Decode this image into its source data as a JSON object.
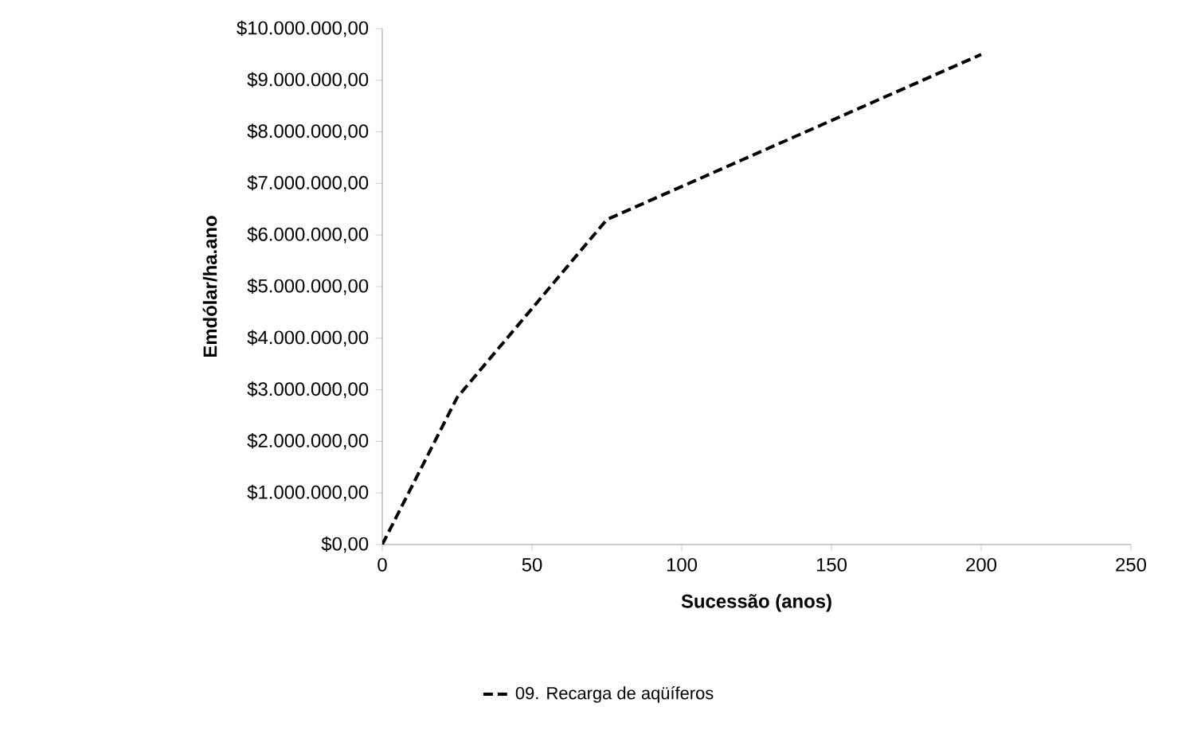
{
  "chart_data": {
    "type": "line",
    "xlabel": "Sucessão (anos)",
    "ylabel": "Emdólar/ha.ano",
    "x": [
      0,
      25,
      75,
      200
    ],
    "series": [
      {
        "name": "09. Recarga de aqüíferos",
        "color": "#000000",
        "values": [
          0,
          2850000,
          6300000,
          9500000
        ]
      }
    ],
    "xlim": [
      0,
      250
    ],
    "ylim": [
      0,
      10000000
    ],
    "xticks": [
      0,
      50,
      100,
      150,
      200,
      250
    ],
    "yticks": [
      {
        "value": 0,
        "label": "$0,00"
      },
      {
        "value": 1000000,
        "label": "$1.000.000,00"
      },
      {
        "value": 2000000,
        "label": "$2.000.000,00"
      },
      {
        "value": 3000000,
        "label": "$3.000.000,00"
      },
      {
        "value": 4000000,
        "label": "$4.000.000,00"
      },
      {
        "value": 5000000,
        "label": "$5.000.000,00"
      },
      {
        "value": 6000000,
        "label": "$6.000.000,00"
      },
      {
        "value": 7000000,
        "label": "$7.000.000,00"
      },
      {
        "value": 8000000,
        "label": "$8.000.000,00"
      },
      {
        "value": 9000000,
        "label": "$9.000.000,00"
      },
      {
        "value": 10000000,
        "label": "$10.000.000,00"
      }
    ],
    "grid": false,
    "legend": "bottom",
    "marker": "none",
    "line_style": "dashed"
  }
}
